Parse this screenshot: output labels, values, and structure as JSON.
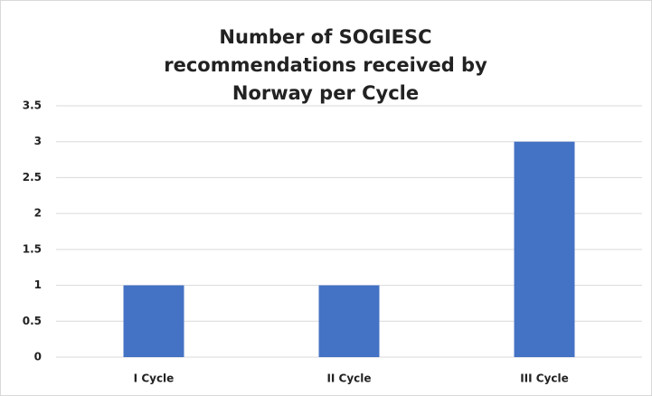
{
  "chart_data": {
    "type": "bar",
    "title": "Number of SOGIESC recommendations received by Norway per Cycle",
    "categories": [
      "I Cycle",
      "II Cycle",
      "III Cycle"
    ],
    "values": [
      1,
      1,
      3
    ],
    "color": "#4472c4",
    "ylim": [
      0,
      3.5
    ],
    "yticks": [
      0,
      0.5,
      1,
      1.5,
      2,
      2.5,
      3,
      3.5
    ],
    "grid": true
  }
}
